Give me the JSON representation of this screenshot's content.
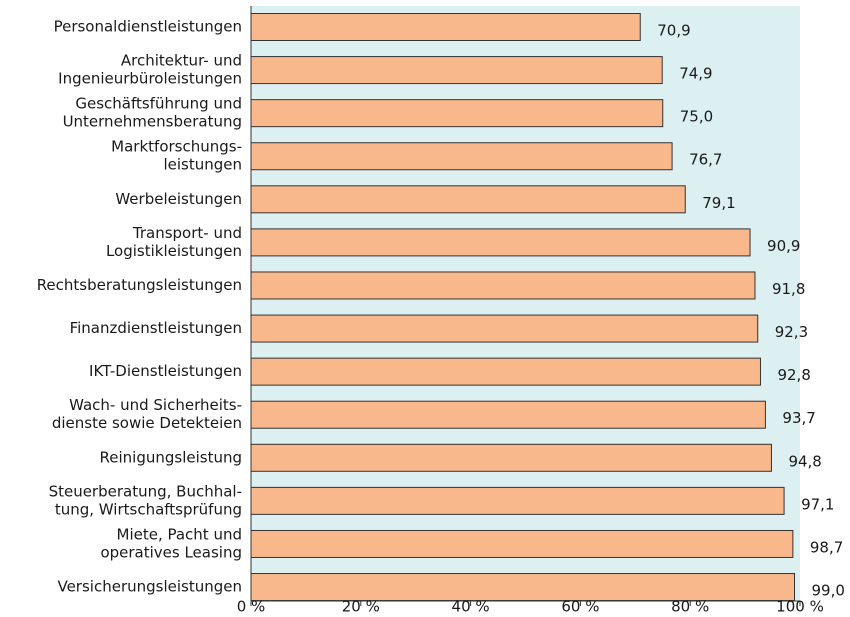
{
  "chart_data": {
    "type": "barh",
    "categories": [
      [
        "Personaldienstleistungen"
      ],
      [
        "Architektur- und",
        "Ingenieurbüroleistungen"
      ],
      [
        "Geschäftsführung und",
        "Unternehmensberatung"
      ],
      [
        "Marktforschungs-",
        "leistungen"
      ],
      [
        "Werbeleistungen"
      ],
      [
        "Transport- und",
        "Logistikleistungen"
      ],
      [
        "Rechtsberatungsleistungen"
      ],
      [
        "Finanzdienstleistungen"
      ],
      [
        "IKT-Dienstleistungen"
      ],
      [
        "Wach- und Sicherheits-",
        "dienste sowie Detekteien"
      ],
      [
        "Reinigungsleistung"
      ],
      [
        "Steuerberatung, Buchhal-",
        "tung, Wirtschaftsprüfung"
      ],
      [
        "Miete, Pacht und",
        "operatives Leasing"
      ],
      [
        "Versicherungsleistungen"
      ]
    ],
    "values": [
      70.9,
      74.9,
      75.0,
      76.7,
      79.1,
      90.9,
      91.8,
      92.3,
      92.8,
      93.7,
      94.8,
      97.1,
      98.7,
      99.0
    ],
    "value_labels": [
      "70,9",
      "74,9",
      "75,0",
      "76,7",
      "79,1",
      "90,9",
      "91,8",
      "92,3",
      "92,8",
      "93,7",
      "94,8",
      "97,1",
      "98,7",
      "99,0"
    ],
    "color": "#f8b88b",
    "plot_background": "#ddf0f1",
    "xlim": [
      0,
      100
    ],
    "xticks": [
      {
        "value": 0,
        "label": "0 %"
      },
      {
        "value": 20,
        "label": "20 %"
      },
      {
        "value": 40,
        "label": "40 %"
      },
      {
        "value": 60,
        "label": "60 %"
      },
      {
        "value": 80,
        "label": "80 %"
      },
      {
        "value": 100,
        "label": "100 %"
      }
    ]
  }
}
